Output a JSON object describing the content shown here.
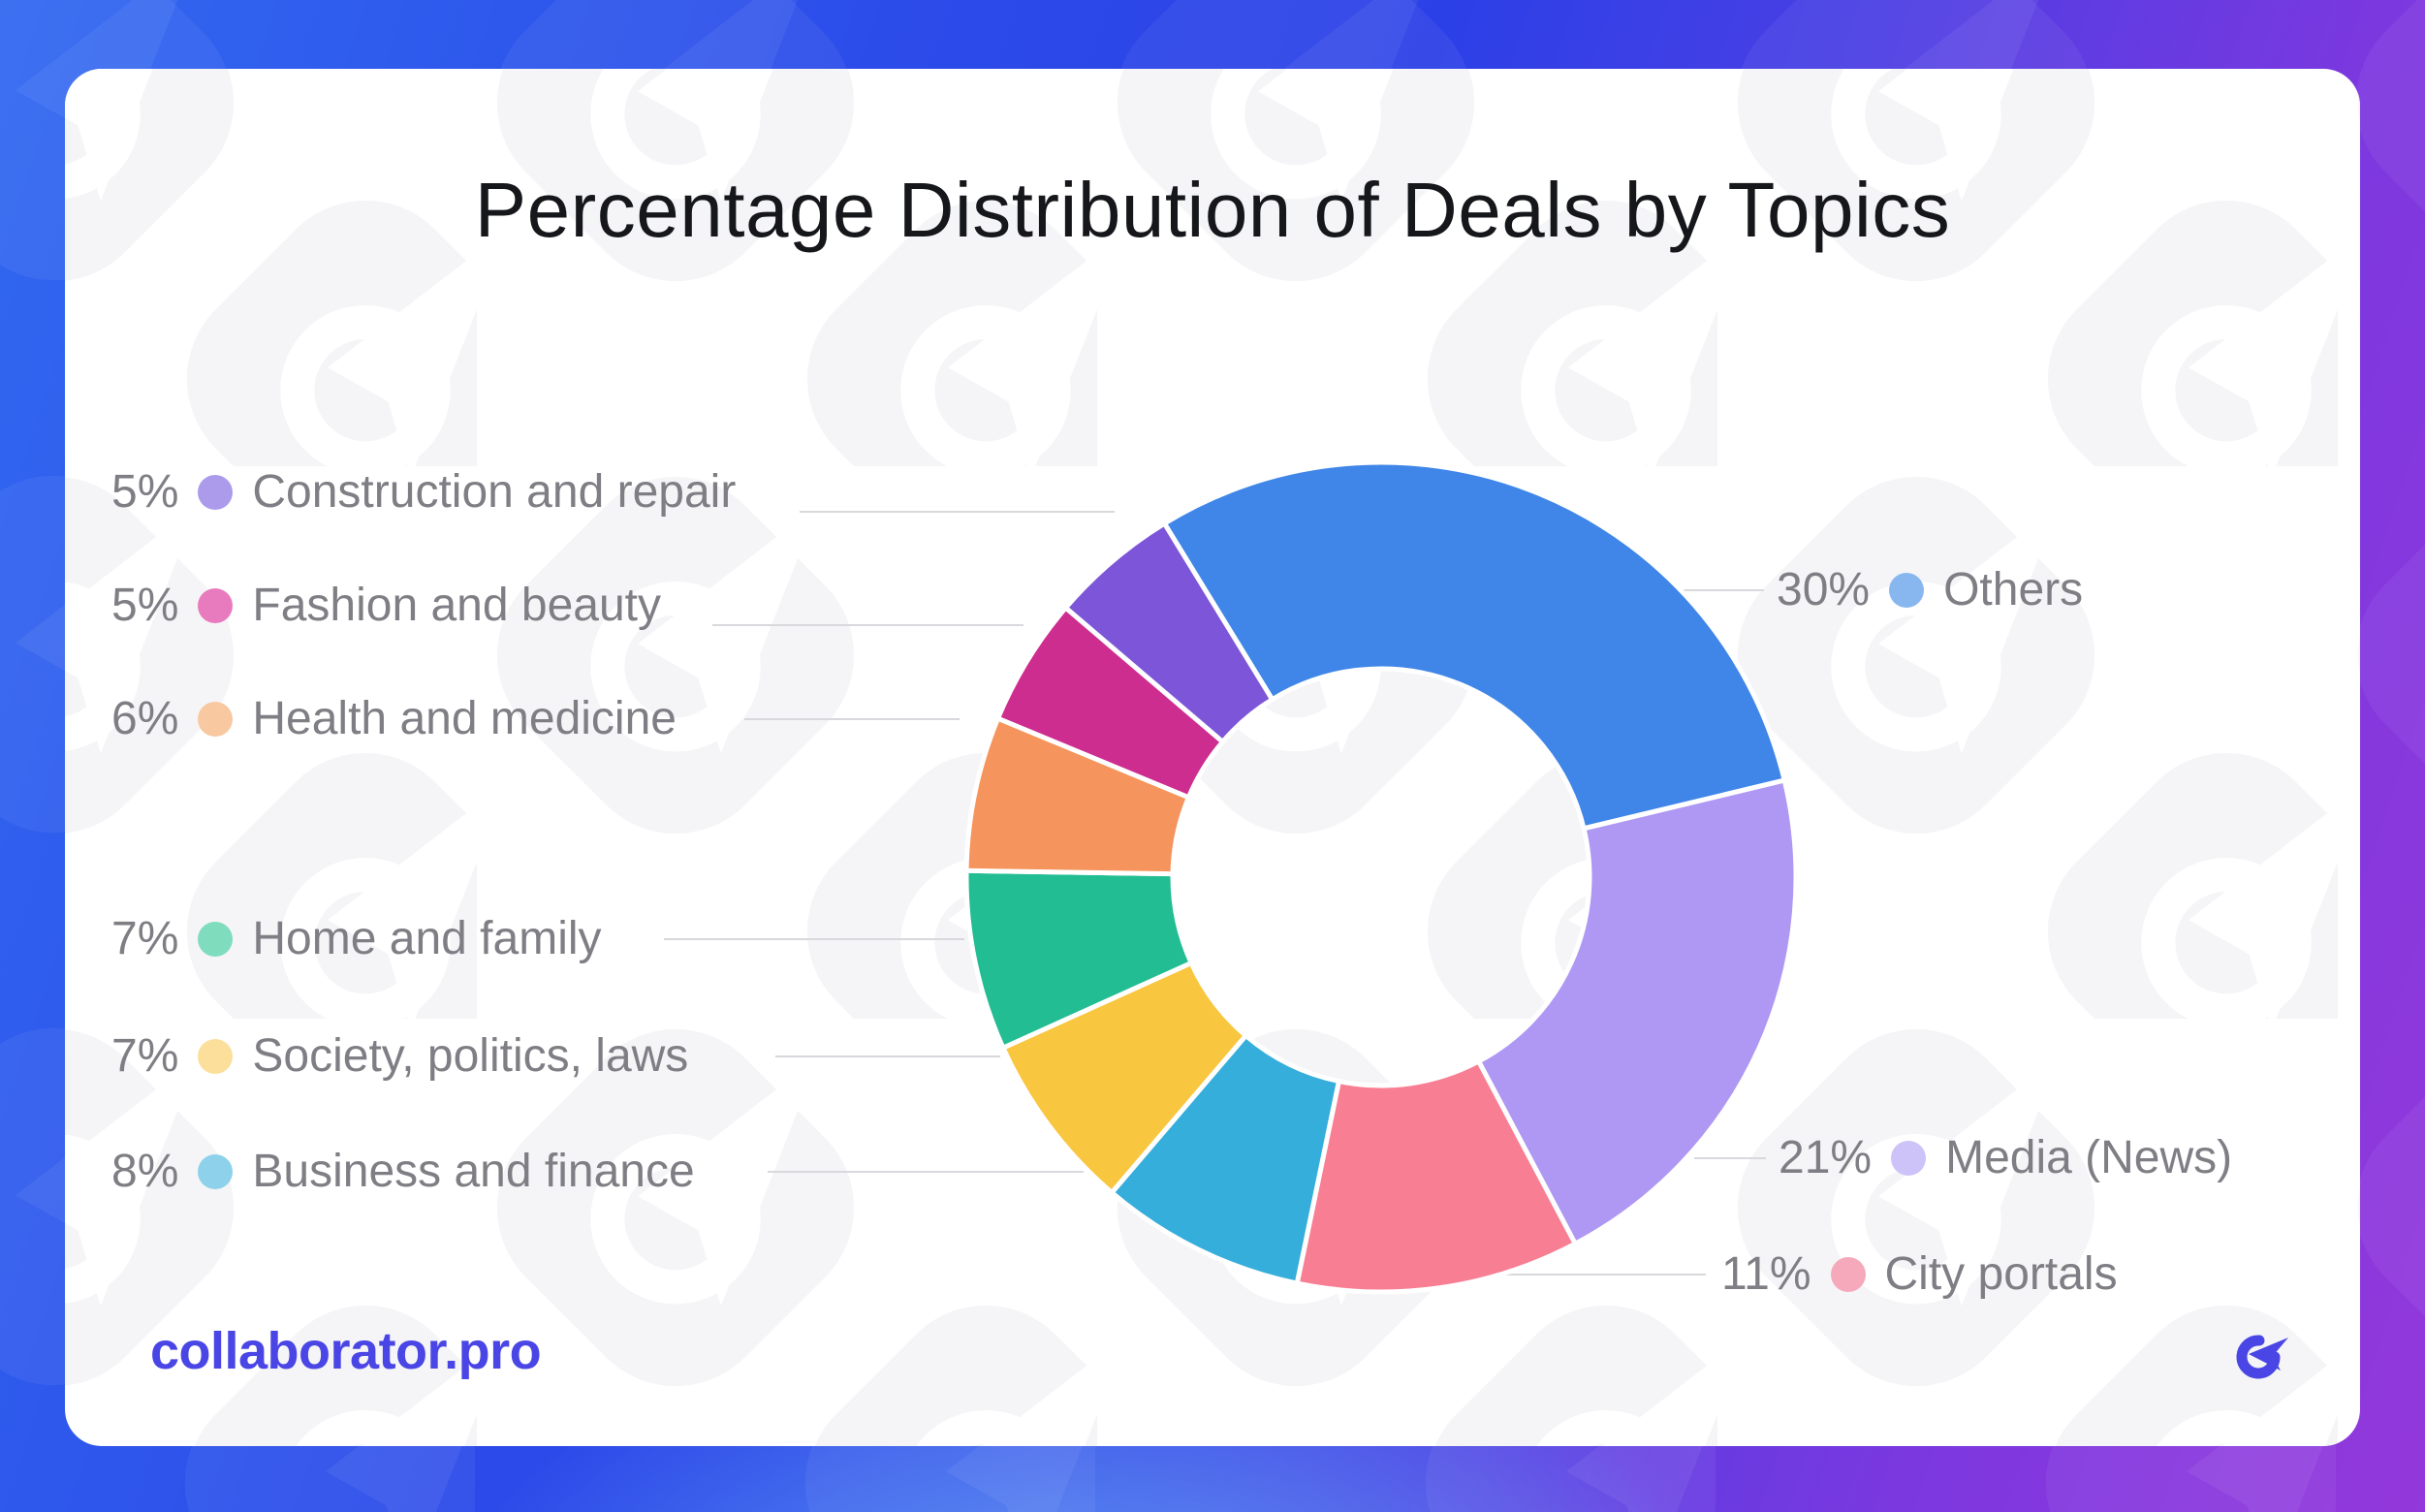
{
  "title": "Percentage Distribution of Deals by Topics",
  "footer": {
    "brand": "collaborator.pro",
    "logo_icon": "collaborator-arrow-icon"
  },
  "colors": {
    "background_gradient": [
      "#3168F0",
      "#2C40E7",
      "#9338DB"
    ],
    "background_glow": "#70BAF8",
    "card_background": "#FFFFFF",
    "watermark": "#F5F5F7",
    "title_text": "#16171B",
    "legend_text": "#7E7E84",
    "leader_line": "#D8D8DD",
    "brand_accent": "#4A46E5",
    "slice_gap": "#FFFFFF"
  },
  "chart_data": {
    "type": "pie",
    "donut": true,
    "title": "Percentage Distribution of Deals by Topics",
    "start_angle_deg": -31.5,
    "direction": "clockwise",
    "inner_radius_ratio": 0.5,
    "legend_position": "both-sides",
    "series": [
      {
        "label": "Others",
        "value": 30,
        "pct": "30%",
        "color": "#3F86E8",
        "dot_color": "#88B7F0"
      },
      {
        "label": "Media (News)",
        "value": 21,
        "pct": "21%",
        "color": "#AE98F3",
        "dot_color": "#CDC3F8"
      },
      {
        "label": "City portals",
        "value": 11,
        "pct": "11%",
        "color": "#F87E93",
        "dot_color": "#F6A9BA"
      },
      {
        "label": "Business and finance",
        "value": 8,
        "pct": "8%",
        "color": "#36AEDB",
        "dot_color": "#8DD2EA"
      },
      {
        "label": "Society, politics, laws",
        "value": 7,
        "pct": "7%",
        "color": "#F9C63F",
        "dot_color": "#FBDF9B"
      },
      {
        "label": "Home and family",
        "value": 7,
        "pct": "7%",
        "color": "#22BD92",
        "dot_color": "#7FDCBD"
      },
      {
        "label": "Health and medicine",
        "value": 6,
        "pct": "6%",
        "color": "#F5945C",
        "dot_color": "#F8C8A0"
      },
      {
        "label": "Fashion and beauty",
        "value": 5,
        "pct": "5%",
        "color": "#CE2D90",
        "dot_color": "#E87BBE"
      },
      {
        "label": "Construction and repair",
        "value": 5,
        "pct": "5%",
        "color": "#7D55D8",
        "dot_color": "#AC9BEB"
      }
    ]
  },
  "legend": {
    "left_order": [
      8,
      7,
      6,
      5,
      4,
      3
    ],
    "right_order": [
      0,
      1,
      2
    ]
  }
}
